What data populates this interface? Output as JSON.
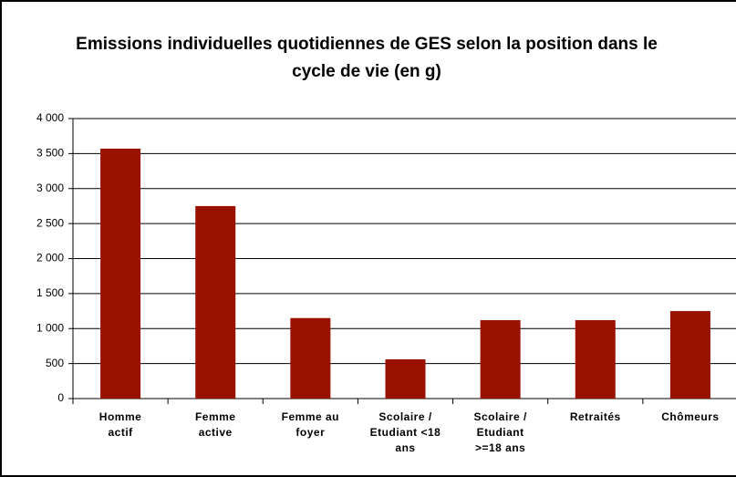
{
  "chart_data": {
    "type": "bar",
    "title": "Emissions individuelles quotidiennes de GES selon la position dans le cycle de vie (en g)",
    "categories": [
      "Homme actif",
      "Femme active",
      "Femme au foyer",
      "Scolaire / Etudiant <18 ans",
      "Scolaire / Etudiant >=18 ans",
      "Retraités",
      "Chômeurs"
    ],
    "values": [
      3570,
      2750,
      1150,
      560,
      1120,
      1120,
      1250
    ],
    "color": "#991100",
    "ylim": [
      0,
      4000
    ],
    "yticks": [
      {
        "value": 0,
        "label": "0"
      },
      {
        "value": 500,
        "label": "500"
      },
      {
        "value": 1000,
        "label": "1 000"
      },
      {
        "value": 1500,
        "label": "1 500"
      },
      {
        "value": 2000,
        "label": "2 000"
      },
      {
        "value": 2500,
        "label": "2 500"
      },
      {
        "value": 3000,
        "label": "3 000"
      },
      {
        "value": 3500,
        "label": "3 500"
      },
      {
        "value": 4000,
        "label": "4 000"
      }
    ],
    "grid": true
  }
}
